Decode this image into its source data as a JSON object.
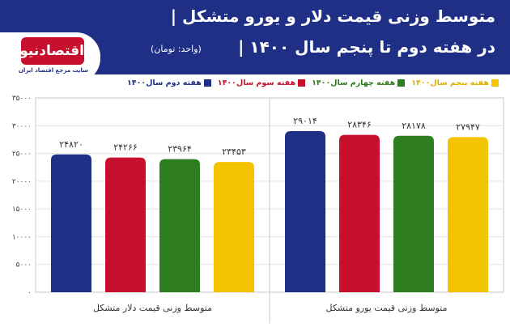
{
  "header": {
    "title_line1": "متوسط وزنی قیمت دلار و یورو متشکل |",
    "title_line2": "در هفته دوم تا پنجم سال ۱۴۰۰ |",
    "unit": "(واحد: تومان)"
  },
  "logo": {
    "name": "اقتصادنیوز",
    "tagline": "سایت مرجع اقتصاد ایران"
  },
  "colors": {
    "header_bg": "#1f2f86",
    "week2": "#1f2f86",
    "week3": "#c8102e",
    "week4": "#2e7d1e",
    "week5": "#f5c400"
  },
  "chart_data": {
    "type": "bar",
    "categories": [
      "متوسط وزنی قیمت دلار متشکل",
      "متوسط وزنی قیمت یورو متشکل"
    ],
    "series": [
      {
        "name": "هفته دوم سال۱۴۰۰",
        "color": "#1f2f86",
        "values": [
          24820,
          29014
        ],
        "labels": [
          "۲۴۸۲۰",
          "۲۹۰۱۴"
        ]
      },
      {
        "name": "هفته سوم سال۱۴۰۰",
        "color": "#c8102e",
        "values": [
          24266,
          28346
        ],
        "labels": [
          "۲۴۲۶۶",
          "۲۸۳۴۶"
        ]
      },
      {
        "name": "هفته چهارم سال۱۴۰۰",
        "color": "#2e7d1e",
        "values": [
          23964,
          28178
        ],
        "labels": [
          "۲۳۹۶۴",
          "۲۸۱۷۸"
        ]
      },
      {
        "name": "هفته پنجم سال۱۴۰۰",
        "color": "#f5c400",
        "values": [
          23453,
          27947
        ],
        "labels": [
          "۲۳۴۵۳",
          "۲۷۹۴۷"
        ]
      }
    ],
    "ylim": [
      0,
      35000
    ],
    "yticks": [
      "۳۵۰۰۰",
      "۳۰۰۰۰",
      "۲۵۰۰۰",
      "۲۰۰۰۰",
      "۱۵۰۰۰",
      "۱۰۰۰۰",
      "۵۰۰۰",
      "۰"
    ],
    "grid": true,
    "legend_position": "top"
  }
}
